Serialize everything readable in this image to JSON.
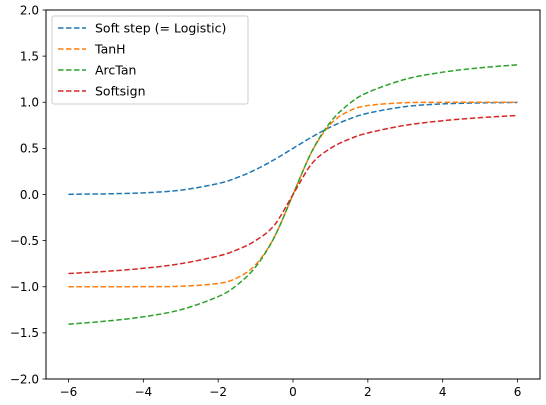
{
  "chart_data": {
    "type": "line",
    "title": "",
    "xlabel": "",
    "ylabel": "",
    "xlim": [
      -6.6,
      6.6
    ],
    "ylim": [
      -2.0,
      2.0
    ],
    "x_ticks": [
      -6,
      -4,
      -2,
      0,
      2,
      4,
      6
    ],
    "x_tick_labels": [
      "−6",
      "−4",
      "−2",
      "0",
      "2",
      "4",
      "6"
    ],
    "y_ticks": [
      -2.0,
      -1.5,
      -1.0,
      -0.5,
      0.0,
      0.5,
      1.0,
      1.5,
      2.0
    ],
    "y_tick_labels": [
      "−2.0",
      "−1.5",
      "−1.0",
      "−0.5",
      "0.0",
      "0.5",
      "1.0",
      "1.5",
      "2.0"
    ],
    "grid": false,
    "legend_position": "top-left",
    "line_style": "dashed",
    "x": [
      -6,
      -5,
      -4,
      -3,
      -2,
      -1.5,
      -1,
      -0.5,
      0,
      0.5,
      1,
      1.5,
      2,
      3,
      4,
      5,
      6
    ],
    "series": [
      {
        "name": "Soft step (= Logistic)",
        "color": "#1f77b4",
        "values": [
          0.002,
          0.007,
          0.018,
          0.047,
          0.119,
          0.182,
          0.269,
          0.378,
          0.5,
          0.622,
          0.731,
          0.818,
          0.881,
          0.953,
          0.982,
          0.993,
          0.998
        ]
      },
      {
        "name": "TanH",
        "color": "#ff7f0e",
        "values": [
          -1.0,
          -1.0,
          -0.999,
          -0.995,
          -0.964,
          -0.905,
          -0.762,
          -0.462,
          0.0,
          0.462,
          0.762,
          0.905,
          0.964,
          0.995,
          0.999,
          1.0,
          1.0
        ]
      },
      {
        "name": "ArcTan",
        "color": "#2ca02c",
        "values": [
          -1.406,
          -1.373,
          -1.326,
          -1.249,
          -1.107,
          -0.983,
          -0.785,
          -0.464,
          0.0,
          0.464,
          0.785,
          0.983,
          1.107,
          1.249,
          1.326,
          1.373,
          1.406
        ]
      },
      {
        "name": "Softsign",
        "color": "#d62728",
        "values": [
          -0.857,
          -0.833,
          -0.8,
          -0.75,
          -0.667,
          -0.6,
          -0.5,
          -0.333,
          0.0,
          0.333,
          0.5,
          0.6,
          0.667,
          0.75,
          0.8,
          0.833,
          0.857
        ]
      }
    ]
  }
}
